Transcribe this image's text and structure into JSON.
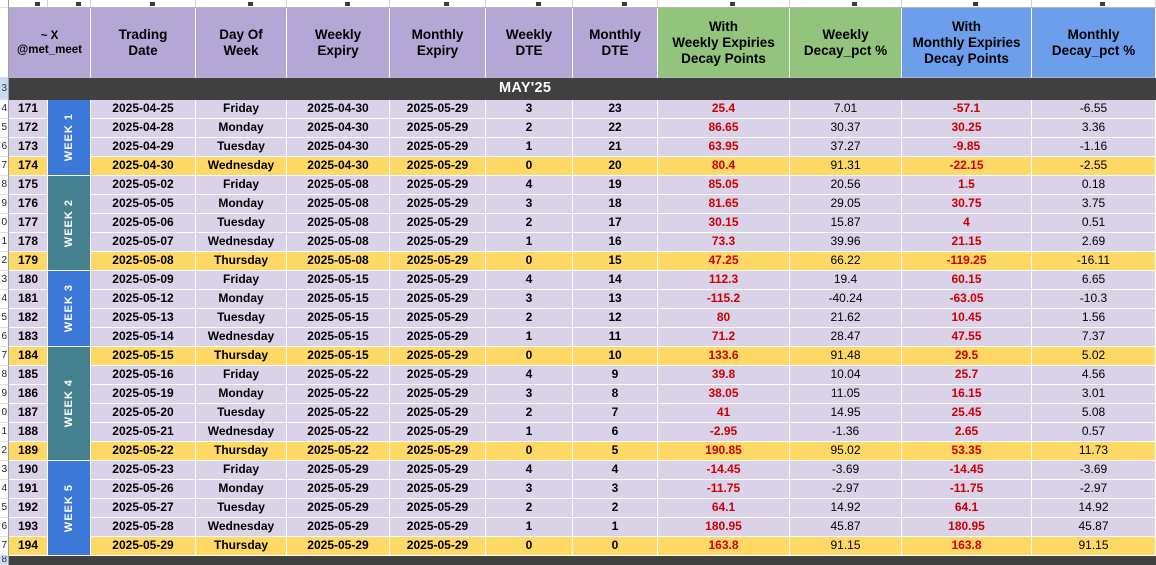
{
  "watermark": {
    "label": "~ X\n@met_meet"
  },
  "month_band_label": "MAY'25",
  "colors": {
    "header_purple": "#b4a7d6",
    "header_green": "#93c47d",
    "header_blue": "#6d9eeb",
    "row_lavender": "#d9d2e9",
    "row_highlight_yellow": "#ffd966",
    "week_blue": "#3c78d8",
    "week_teal": "#45818e",
    "month_band_dark": "#404040",
    "decay_red": "#cc0000",
    "gutter_selected_blue": "#c9daf8"
  },
  "columns": [
    {
      "id": "trading_date",
      "label": "Trading\nDate",
      "tone": "purple"
    },
    {
      "id": "day_of_week",
      "label": "Day Of\nWeek",
      "tone": "purple"
    },
    {
      "id": "weekly_expiry",
      "label": "Weekly\nExpiry",
      "tone": "purple"
    },
    {
      "id": "monthly_expiry",
      "label": "Monthly\nExpiry",
      "tone": "purple"
    },
    {
      "id": "weekly_dte",
      "label": "Weekly\nDTE",
      "tone": "purple"
    },
    {
      "id": "monthly_dte",
      "label": "Monthly\nDTE",
      "tone": "purple"
    },
    {
      "id": "weekly_decay_points",
      "label": "With\nWeekly Expiries\nDecay Points",
      "tone": "green"
    },
    {
      "id": "weekly_decay_pct",
      "label": "Weekly\nDecay_pct %",
      "tone": "green"
    },
    {
      "id": "monthly_decay_points",
      "label": "With\nMonthly Expiries\nDecay Points",
      "tone": "blue"
    },
    {
      "id": "monthly_decay_pct",
      "label": "Monthly\nDecay_pct %",
      "tone": "blue"
    }
  ],
  "weeks": [
    {
      "label": "WEEK 1",
      "tone": "blue",
      "rows": [
        {
          "num": "171",
          "date": "2025-04-25",
          "day": "Friday",
          "weekly_expiry": "2025-04-30",
          "monthly_expiry": "2025-05-29",
          "weekly_dte": "3",
          "monthly_dte": "23",
          "weekly_decay_points": "25.4",
          "weekly_decay_pct": "7.01",
          "monthly_decay_points": "-57.1",
          "monthly_decay_pct": "-6.55",
          "highlight": false
        },
        {
          "num": "172",
          "date": "2025-04-28",
          "day": "Monday",
          "weekly_expiry": "2025-04-30",
          "monthly_expiry": "2025-05-29",
          "weekly_dte": "2",
          "monthly_dte": "22",
          "weekly_decay_points": "86.65",
          "weekly_decay_pct": "30.37",
          "monthly_decay_points": "30.25",
          "monthly_decay_pct": "3.36",
          "highlight": false
        },
        {
          "num": "173",
          "date": "2025-04-29",
          "day": "Tuesday",
          "weekly_expiry": "2025-04-30",
          "monthly_expiry": "2025-05-29",
          "weekly_dte": "1",
          "monthly_dte": "21",
          "weekly_decay_points": "63.95",
          "weekly_decay_pct": "37.27",
          "monthly_decay_points": "-9.85",
          "monthly_decay_pct": "-1.16",
          "highlight": false
        },
        {
          "num": "174",
          "date": "2025-04-30",
          "day": "Wednesday",
          "weekly_expiry": "2025-04-30",
          "monthly_expiry": "2025-05-29",
          "weekly_dte": "0",
          "monthly_dte": "20",
          "weekly_decay_points": "80.4",
          "weekly_decay_pct": "91.31",
          "monthly_decay_points": "-22.15",
          "monthly_decay_pct": "-2.55",
          "highlight": true
        }
      ]
    },
    {
      "label": "WEEK 2",
      "tone": "teal",
      "rows": [
        {
          "num": "175",
          "date": "2025-05-02",
          "day": "Friday",
          "weekly_expiry": "2025-05-08",
          "monthly_expiry": "2025-05-29",
          "weekly_dte": "4",
          "monthly_dte": "19",
          "weekly_decay_points": "85.05",
          "weekly_decay_pct": "20.56",
          "monthly_decay_points": "1.5",
          "monthly_decay_pct": "0.18",
          "highlight": false
        },
        {
          "num": "176",
          "date": "2025-05-05",
          "day": "Monday",
          "weekly_expiry": "2025-05-08",
          "monthly_expiry": "2025-05-29",
          "weekly_dte": "3",
          "monthly_dte": "18",
          "weekly_decay_points": "81.65",
          "weekly_decay_pct": "29.05",
          "monthly_decay_points": "30.75",
          "monthly_decay_pct": "3.75",
          "highlight": false
        },
        {
          "num": "177",
          "date": "2025-05-06",
          "day": "Tuesday",
          "weekly_expiry": "2025-05-08",
          "monthly_expiry": "2025-05-29",
          "weekly_dte": "2",
          "monthly_dte": "17",
          "weekly_decay_points": "30.15",
          "weekly_decay_pct": "15.87",
          "monthly_decay_points": "4",
          "monthly_decay_pct": "0.51",
          "highlight": false
        },
        {
          "num": "178",
          "date": "2025-05-07",
          "day": "Wednesday",
          "weekly_expiry": "2025-05-08",
          "monthly_expiry": "2025-05-29",
          "weekly_dte": "1",
          "monthly_dte": "16",
          "weekly_decay_points": "73.3",
          "weekly_decay_pct": "39.96",
          "monthly_decay_points": "21.15",
          "monthly_decay_pct": "2.69",
          "highlight": false
        },
        {
          "num": "179",
          "date": "2025-05-08",
          "day": "Thursday",
          "weekly_expiry": "2025-05-08",
          "monthly_expiry": "2025-05-29",
          "weekly_dte": "0",
          "monthly_dte": "15",
          "weekly_decay_points": "47.25",
          "weekly_decay_pct": "66.22",
          "monthly_decay_points": "-119.25",
          "monthly_decay_pct": "-16.11",
          "highlight": true
        }
      ]
    },
    {
      "label": "WEEK 3",
      "tone": "blue",
      "rows": [
        {
          "num": "180",
          "date": "2025-05-09",
          "day": "Friday",
          "weekly_expiry": "2025-05-15",
          "monthly_expiry": "2025-05-29",
          "weekly_dte": "4",
          "monthly_dte": "14",
          "weekly_decay_points": "112.3",
          "weekly_decay_pct": "19.4",
          "monthly_decay_points": "60.15",
          "monthly_decay_pct": "6.65",
          "highlight": false
        },
        {
          "num": "181",
          "date": "2025-05-12",
          "day": "Monday",
          "weekly_expiry": "2025-05-15",
          "monthly_expiry": "2025-05-29",
          "weekly_dte": "3",
          "monthly_dte": "13",
          "weekly_decay_points": "-115.2",
          "weekly_decay_pct": "-40.24",
          "monthly_decay_points": "-63.05",
          "monthly_decay_pct": "-10.3",
          "highlight": false
        },
        {
          "num": "182",
          "date": "2025-05-13",
          "day": "Tuesday",
          "weekly_expiry": "2025-05-15",
          "monthly_expiry": "2025-05-29",
          "weekly_dte": "2",
          "monthly_dte": "12",
          "weekly_decay_points": "80",
          "weekly_decay_pct": "21.62",
          "monthly_decay_points": "10.45",
          "monthly_decay_pct": "1.56",
          "highlight": false
        },
        {
          "num": "183",
          "date": "2025-05-14",
          "day": "Wednesday",
          "weekly_expiry": "2025-05-15",
          "monthly_expiry": "2025-05-29",
          "weekly_dte": "1",
          "monthly_dte": "11",
          "weekly_decay_points": "71.2",
          "weekly_decay_pct": "28.47",
          "monthly_decay_points": "47.55",
          "monthly_decay_pct": "7.37",
          "highlight": false
        }
      ]
    },
    {
      "label": "WEEK 4",
      "tone": "teal",
      "rows": [
        {
          "num": "184",
          "date": "2025-05-15",
          "day": "Thursday",
          "weekly_expiry": "2025-05-15",
          "monthly_expiry": "2025-05-29",
          "weekly_dte": "0",
          "monthly_dte": "10",
          "weekly_decay_points": "133.6",
          "weekly_decay_pct": "91.48",
          "monthly_decay_points": "29.5",
          "monthly_decay_pct": "5.02",
          "highlight": true
        },
        {
          "num": "185",
          "date": "2025-05-16",
          "day": "Friday",
          "weekly_expiry": "2025-05-22",
          "monthly_expiry": "2025-05-29",
          "weekly_dte": "4",
          "monthly_dte": "9",
          "weekly_decay_points": "39.8",
          "weekly_decay_pct": "10.04",
          "monthly_decay_points": "25.7",
          "monthly_decay_pct": "4.56",
          "highlight": false
        },
        {
          "num": "186",
          "date": "2025-05-19",
          "day": "Monday",
          "weekly_expiry": "2025-05-22",
          "monthly_expiry": "2025-05-29",
          "weekly_dte": "3",
          "monthly_dte": "8",
          "weekly_decay_points": "38.05",
          "weekly_decay_pct": "11.05",
          "monthly_decay_points": "16.15",
          "monthly_decay_pct": "3.01",
          "highlight": false
        },
        {
          "num": "187",
          "date": "2025-05-20",
          "day": "Tuesday",
          "weekly_expiry": "2025-05-22",
          "monthly_expiry": "2025-05-29",
          "weekly_dte": "2",
          "monthly_dte": "7",
          "weekly_decay_points": "41",
          "weekly_decay_pct": "14.95",
          "monthly_decay_points": "25.45",
          "monthly_decay_pct": "5.08",
          "highlight": false
        },
        {
          "num": "188",
          "date": "2025-05-21",
          "day": "Wednesday",
          "weekly_expiry": "2025-05-22",
          "monthly_expiry": "2025-05-29",
          "weekly_dte": "1",
          "monthly_dte": "6",
          "weekly_decay_points": "-2.95",
          "weekly_decay_pct": "-1.36",
          "monthly_decay_points": "2.65",
          "monthly_decay_pct": "0.57",
          "highlight": false
        },
        {
          "num": "189",
          "date": "2025-05-22",
          "day": "Thursday",
          "weekly_expiry": "2025-05-22",
          "monthly_expiry": "2025-05-29",
          "weekly_dte": "0",
          "monthly_dte": "5",
          "weekly_decay_points": "190.85",
          "weekly_decay_pct": "95.02",
          "monthly_decay_points": "53.35",
          "monthly_decay_pct": "11.73",
          "highlight": true
        }
      ]
    },
    {
      "label": "WEEK 5",
      "tone": "blue",
      "rows": [
        {
          "num": "190",
          "date": "2025-05-23",
          "day": "Friday",
          "weekly_expiry": "2025-05-29",
          "monthly_expiry": "2025-05-29",
          "weekly_dte": "4",
          "monthly_dte": "4",
          "weekly_decay_points": "-14.45",
          "weekly_decay_pct": "-3.69",
          "monthly_decay_points": "-14.45",
          "monthly_decay_pct": "-3.69",
          "highlight": false
        },
        {
          "num": "191",
          "date": "2025-05-26",
          "day": "Monday",
          "weekly_expiry": "2025-05-29",
          "monthly_expiry": "2025-05-29",
          "weekly_dte": "3",
          "monthly_dte": "3",
          "weekly_decay_points": "-11.75",
          "weekly_decay_pct": "-2.97",
          "monthly_decay_points": "-11.75",
          "monthly_decay_pct": "-2.97",
          "highlight": false
        },
        {
          "num": "192",
          "date": "2025-05-27",
          "day": "Tuesday",
          "weekly_expiry": "2025-05-29",
          "monthly_expiry": "2025-05-29",
          "weekly_dte": "2",
          "monthly_dte": "2",
          "weekly_decay_points": "64.1",
          "weekly_decay_pct": "14.92",
          "monthly_decay_points": "64.1",
          "monthly_decay_pct": "14.92",
          "highlight": false
        },
        {
          "num": "193",
          "date": "2025-05-28",
          "day": "Wednesday",
          "weekly_expiry": "2025-05-29",
          "monthly_expiry": "2025-05-29",
          "weekly_dte": "1",
          "monthly_dte": "1",
          "weekly_decay_points": "180.95",
          "weekly_decay_pct": "45.87",
          "monthly_decay_points": "180.95",
          "monthly_decay_pct": "45.87",
          "highlight": false
        },
        {
          "num": "194",
          "date": "2025-05-29",
          "day": "Thursday",
          "weekly_expiry": "2025-05-29",
          "monthly_expiry": "2025-05-29",
          "weekly_dte": "0",
          "monthly_dte": "0",
          "weekly_decay_points": "163.8",
          "weekly_decay_pct": "91.15",
          "monthly_decay_points": "163.8",
          "monthly_decay_pct": "91.15",
          "highlight": true
        }
      ]
    }
  ],
  "gutter": {
    "band_digit": "3",
    "row_digits": [
      "4",
      "5",
      "6",
      "7",
      "8",
      "9",
      "0",
      "1",
      "2",
      "3",
      "4",
      "5",
      "6",
      "7",
      "8",
      "9",
      "0",
      "1",
      "2",
      "3",
      "4",
      "5",
      "6",
      "7"
    ],
    "bottom_digit": "8"
  }
}
